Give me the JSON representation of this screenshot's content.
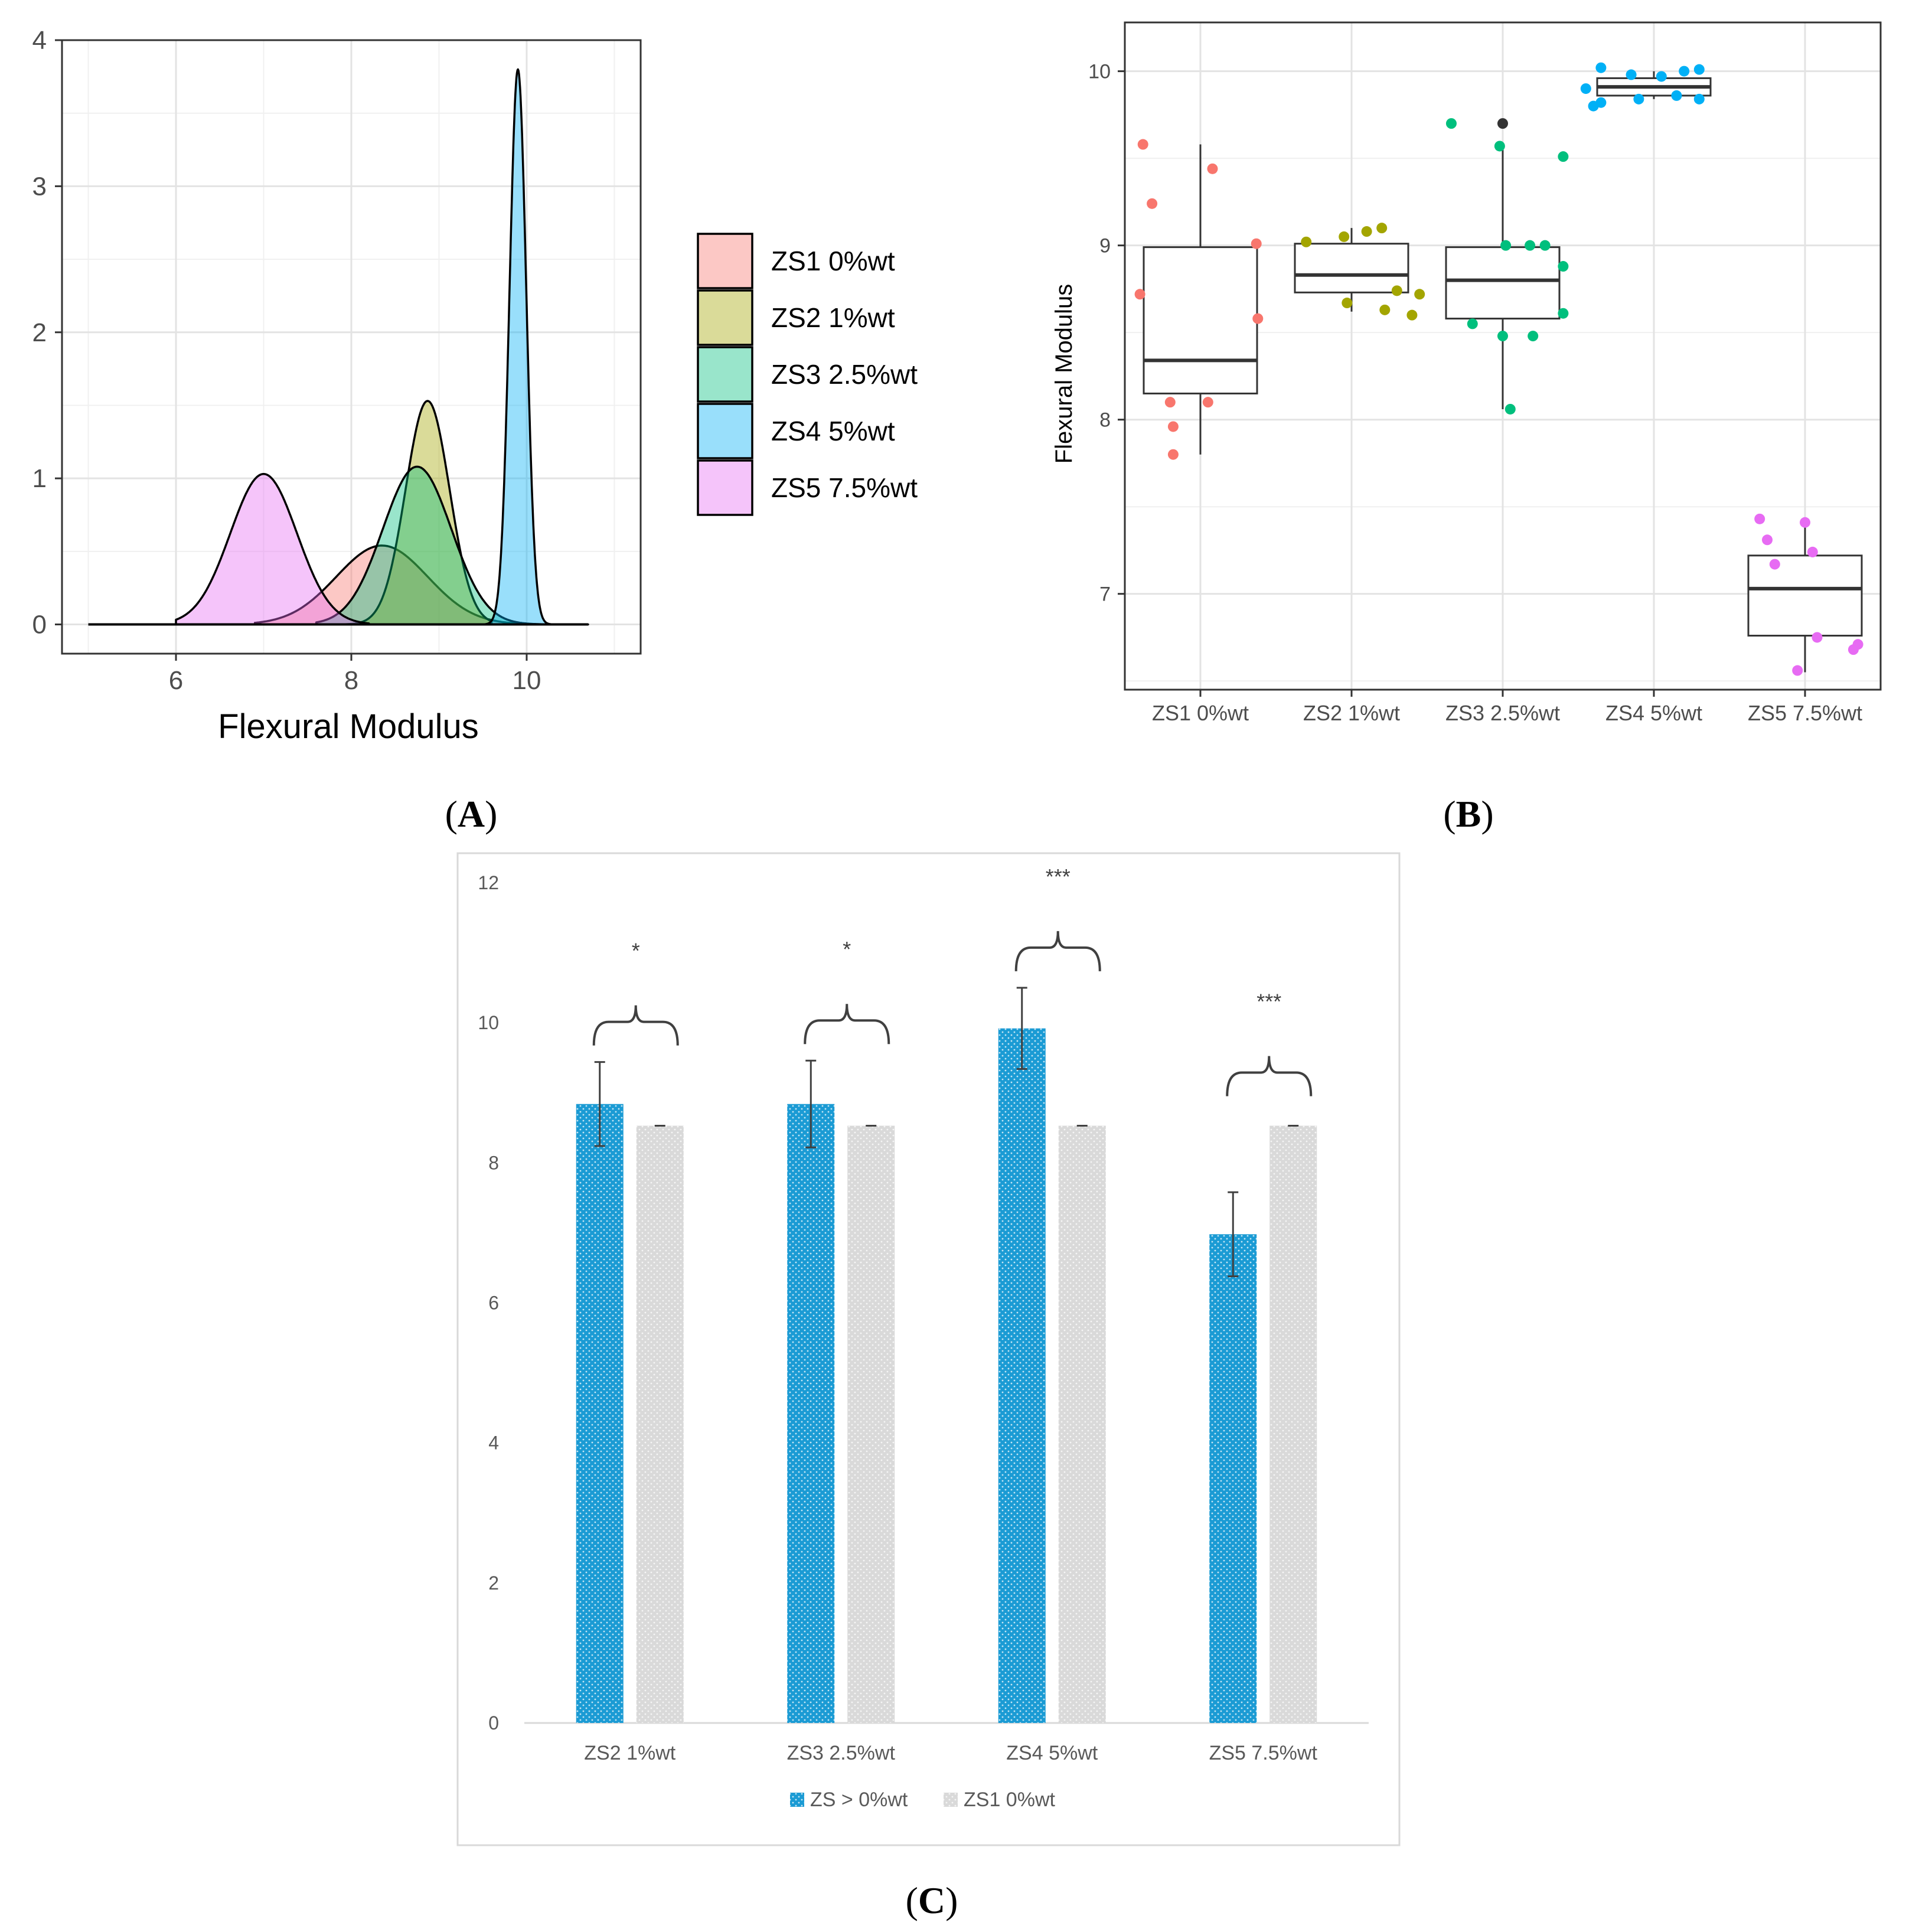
{
  "panels": {
    "a": {
      "label": "(A)",
      "label_letter": "A"
    },
    "b": {
      "label": "(B)",
      "label_letter": "B"
    },
    "c": {
      "label": "(C)",
      "label_letter": "C"
    }
  },
  "chart_data": [
    {
      "id": "A",
      "type": "area",
      "subtype": "density",
      "title": "",
      "xlabel": "Flexural Modulus",
      "ylabel": "",
      "xlim": [
        4.7,
        11.3
      ],
      "ylim": [
        -0.2,
        4.0
      ],
      "xticks": [
        6,
        8,
        10
      ],
      "yticks": [
        0,
        1,
        2,
        3,
        4
      ],
      "grid": true,
      "legend": "right",
      "series": [
        {
          "name": "ZS1 0%wt",
          "color": "#f8766d",
          "mean": 8.35,
          "sd": 0.52,
          "peak": 0.54,
          "range": [
            6.9,
            10.4
          ]
        },
        {
          "name": "ZS2 1%wt",
          "color": "#a3a500",
          "mean": 8.87,
          "sd": 0.25,
          "peak": 1.53,
          "range": [
            7.9,
            9.6
          ]
        },
        {
          "name": "ZS3 2.5%wt",
          "color": "#00bf7d",
          "mean": 8.75,
          "sd": 0.39,
          "peak": 1.08,
          "range": [
            7.6,
            10.7
          ]
        },
        {
          "name": "ZS4 5%wt",
          "color": "#00b0f6",
          "mean": 9.9,
          "sd": 0.095,
          "peak": 3.8,
          "range": [
            9.3,
            10.7
          ]
        },
        {
          "name": "ZS5 7.5%wt",
          "color": "#e76bf3",
          "mean": 7.0,
          "sd": 0.38,
          "peak": 1.03,
          "range": [
            6.0,
            8.2
          ]
        }
      ]
    },
    {
      "id": "B",
      "type": "scatter",
      "subtype": "boxplot",
      "title": "",
      "xlabel": "",
      "ylabel": "Flexural Modulus",
      "ylim": [
        6.45,
        10.28
      ],
      "yticks": [
        7,
        8,
        9,
        10
      ],
      "grid": true,
      "legend": "none",
      "categories": [
        "ZS1 0%wt",
        "ZS2 1%wt",
        "ZS3 2.5%wt",
        "ZS4 5%wt",
        "ZS5 7.5%wt"
      ],
      "boxes": [
        {
          "q1": 8.15,
          "median": 8.34,
          "q3": 8.99,
          "min": 7.8,
          "max": 9.58,
          "color": "#f8766d"
        },
        {
          "q1": 8.73,
          "median": 8.83,
          "q3": 9.01,
          "min": 8.62,
          "max": 9.1,
          "color": "#a3a500"
        },
        {
          "q1": 8.58,
          "median": 8.8,
          "q3": 8.99,
          "min": 8.06,
          "max": 9.57,
          "outliers": [
            9.7
          ],
          "color": "#00bf7d"
        },
        {
          "q1": 9.86,
          "median": 9.91,
          "q3": 9.96,
          "min": 9.84,
          "max": 10.0,
          "color": "#00b0f6"
        },
        {
          "q1": 6.76,
          "median": 7.03,
          "q3": 7.22,
          "min": 6.55,
          "max": 7.41,
          "color": "#e76bf3"
        }
      ],
      "points": [
        [
          [
            -0.38,
            9.58
          ],
          [
            -0.32,
            9.24
          ],
          [
            -0.4,
            8.72
          ],
          [
            0.08,
            9.44
          ],
          [
            0.37,
            9.01
          ],
          [
            0.38,
            8.58
          ],
          [
            -0.2,
            8.1
          ],
          [
            0.05,
            8.1
          ],
          [
            -0.18,
            7.96
          ],
          [
            -0.18,
            7.8
          ]
        ],
        [
          [
            -0.3,
            9.02
          ],
          [
            -0.05,
            9.05
          ],
          [
            0.1,
            9.08
          ],
          [
            0.2,
            9.1
          ],
          [
            -0.03,
            8.67
          ],
          [
            0.22,
            8.63
          ],
          [
            0.4,
            8.6
          ],
          [
            0.45,
            8.72
          ],
          [
            0.3,
            8.74
          ]
        ],
        [
          [
            -0.34,
            9.7
          ],
          [
            -0.02,
            9.57
          ],
          [
            0.4,
            9.51
          ],
          [
            0.02,
            9.0
          ],
          [
            0.18,
            9.0
          ],
          [
            0.28,
            9.0
          ],
          [
            0.4,
            8.88
          ],
          [
            0.4,
            8.61
          ],
          [
            -0.2,
            8.55
          ],
          [
            0.0,
            8.48
          ],
          [
            0.2,
            8.48
          ],
          [
            0.05,
            8.06
          ]
        ],
        [
          [
            -0.45,
            9.9
          ],
          [
            -0.35,
            10.02
          ],
          [
            -0.15,
            9.98
          ],
          [
            0.05,
            9.97
          ],
          [
            0.2,
            10.0
          ],
          [
            0.3,
            10.01
          ],
          [
            -0.4,
            9.8
          ],
          [
            -0.35,
            9.82
          ],
          [
            -0.1,
            9.84
          ],
          [
            0.15,
            9.86
          ],
          [
            0.3,
            9.84
          ]
        ],
        [
          [
            -0.3,
            7.43
          ],
          [
            -0.25,
            7.31
          ],
          [
            0.0,
            7.41
          ],
          [
            0.05,
            7.24
          ],
          [
            -0.2,
            7.17
          ],
          [
            0.35,
            6.71
          ],
          [
            0.32,
            6.68
          ],
          [
            0.08,
            6.75
          ],
          [
            -0.05,
            6.56
          ]
        ]
      ]
    },
    {
      "id": "C",
      "type": "bar",
      "title": "",
      "xlabel": "",
      "ylabel": "",
      "ylim": [
        0,
        12
      ],
      "yticks": [
        0,
        2,
        4,
        6,
        8,
        10,
        12
      ],
      "grid": false,
      "legend": "bottom",
      "categories": [
        "ZS2 1%wt",
        "ZS3 2.5%wt",
        "ZS4 5%wt",
        "ZS5 7.5%wt"
      ],
      "series": [
        {
          "name": "ZS > 0%wt",
          "color": "#1b9bd4",
          "values": [
            8.84,
            8.84,
            9.92,
            6.98
          ],
          "errors": [
            0.6,
            0.62,
            0.58,
            0.6
          ]
        },
        {
          "name": "ZS1 0%wt",
          "color": "#d9d9d9",
          "values": [
            8.53,
            8.53,
            8.53,
            8.53
          ],
          "errors": [
            0,
            0,
            0,
            0
          ]
        }
      ],
      "significance": [
        "*",
        "*",
        "***",
        "***"
      ]
    }
  ]
}
